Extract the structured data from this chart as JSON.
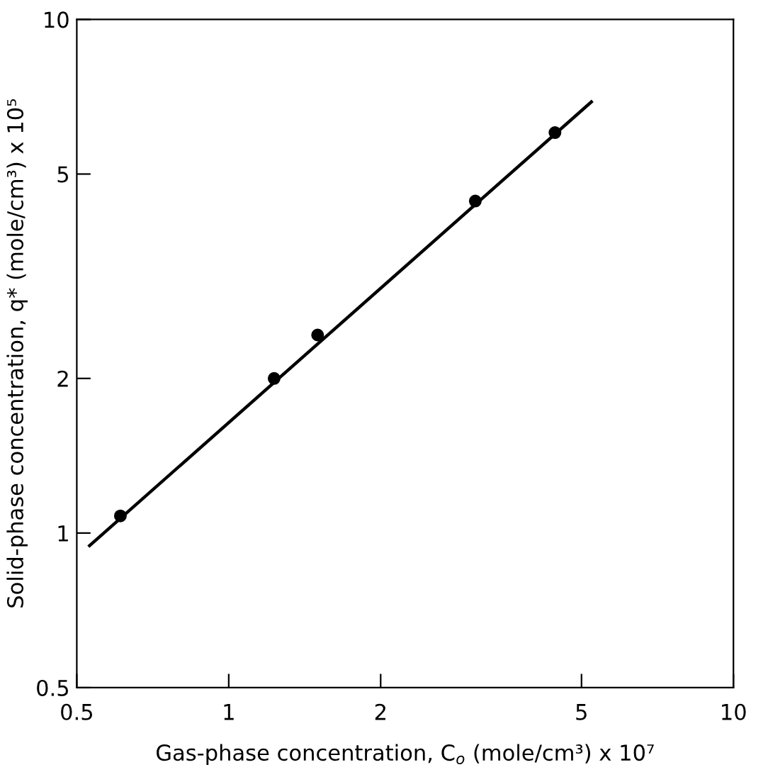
{
  "chart_data": {
    "type": "scatter",
    "xlabel": "Gas-phase concentration, C$_{o}$ (mole/cm³) x 10⁷",
    "ylabel": "Solid-phase concentration, q* (mole/cm³) x 10⁵",
    "log": "xy",
    "xlim": [
      0.5,
      10
    ],
    "ylim": [
      0.5,
      10
    ],
    "xticks": [
      0.5,
      1,
      2,
      5,
      10
    ],
    "yticks": [
      0.5,
      1,
      2,
      5,
      10
    ],
    "grid": false,
    "series": [
      {
        "marker": "circle",
        "color": "#000000",
        "x": [
          0.61,
          1.23,
          1.5,
          3.08,
          4.43
        ],
        "values": [
          1.08,
          2.0,
          2.43,
          4.43,
          6.02
        ]
      },
      {
        "type": "line",
        "color": "#000000",
        "line_style": "solid",
        "marker": "none",
        "x": [
          0.53,
          5.23
        ],
        "values": [
          0.945,
          6.91
        ]
      }
    ]
  }
}
